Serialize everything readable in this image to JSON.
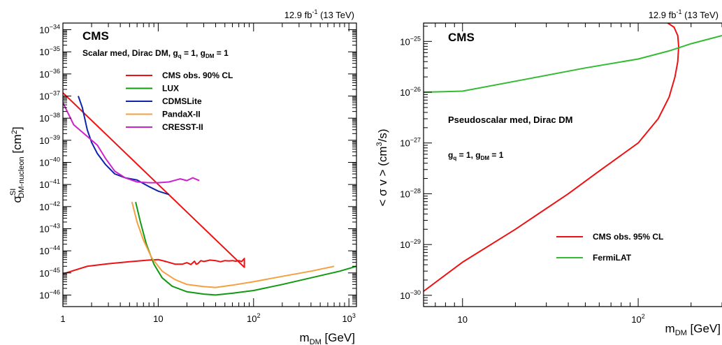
{
  "chart_data": [
    {
      "type": "line",
      "label": "CMS",
      "lumi": "12.9 fb",
      "lumi_exp": "-1",
      "energy": "(13 TeV)",
      "subtitle": "Scalar med, Dirac DM,  g",
      "subtitle_q": "q",
      "subtitle_mid": " = 1, g",
      "subtitle_dm": "DM",
      "subtitle_end": " = 1",
      "xlabel": "m",
      "xlabel_sub": "DM",
      "xlabel_unit": " [GeV]",
      "ylabel": "σ",
      "ylabel_sup": "SI",
      "ylabel_sub": "DM-nucleon",
      "ylabel_unit": " [cm",
      "ylabel_unit_sup": "2",
      "ylabel_unit_end": "]",
      "xscale": "log",
      "yscale": "log",
      "xlim": [
        1,
        1200
      ],
      "ylim": [
        3e-47,
        2e-34
      ],
      "legend_position": "top-center",
      "x_ticks": [
        {
          "value": 1,
          "base": "1",
          "exp": ""
        },
        {
          "value": 10,
          "base": "10",
          "exp": ""
        },
        {
          "value": 100,
          "base": "10",
          "exp": "2"
        },
        {
          "value": 1000,
          "base": "10",
          "exp": "3"
        }
      ],
      "y_ticks": [
        {
          "value": 1e-34,
          "base": "10",
          "exp": "−34"
        },
        {
          "value": 1e-35,
          "base": "10",
          "exp": "−35"
        },
        {
          "value": 1e-36,
          "base": "10",
          "exp": "−36"
        },
        {
          "value": 1e-37,
          "base": "10",
          "exp": "−37"
        },
        {
          "value": 1e-38,
          "base": "10",
          "exp": "−38"
        },
        {
          "value": 1e-39,
          "base": "10",
          "exp": "−39"
        },
        {
          "value": 1e-40,
          "base": "10",
          "exp": "−40"
        },
        {
          "value": 1e-41,
          "base": "10",
          "exp": "−41"
        },
        {
          "value": 1e-42,
          "base": "10",
          "exp": "−42"
        },
        {
          "value": 1e-43,
          "base": "10",
          "exp": "−43"
        },
        {
          "value": 1e-44,
          "base": "10",
          "exp": "−44"
        },
        {
          "value": 1e-45,
          "base": "10",
          "exp": "−45"
        },
        {
          "value": 1e-46,
          "base": "10",
          "exp": "−46"
        }
      ],
      "series": [
        {
          "name": "CMS obs. 90% CL",
          "color": "#ee1111",
          "x": [
            1,
            1.8,
            3,
            5,
            8,
            10,
            12,
            15,
            18,
            20,
            22,
            24,
            25,
            26,
            28,
            30,
            32,
            35,
            40,
            45,
            50,
            55,
            60,
            65,
            70,
            75,
            80,
            80,
            1
          ],
          "y": [
            9e-46,
            2e-45,
            2.6e-45,
            3.2e-45,
            3.8e-45,
            4e-45,
            3.3e-45,
            2.5e-45,
            2.5e-45,
            2.9e-45,
            2.4e-45,
            3.4e-45,
            2.5e-45,
            2.6e-45,
            3.6e-45,
            3.3e-45,
            3.5e-45,
            3.8e-45,
            3.6e-45,
            3.2e-45,
            3.6e-45,
            3.5e-45,
            3.6e-45,
            3.4e-45,
            3.6e-45,
            3.3e-45,
            4.5e-45,
            1.8e-45,
            1.4e-37
          ]
        },
        {
          "name": "LUX",
          "color": "#119911",
          "x": [
            5.8,
            6.5,
            7.5,
            9,
            11,
            14,
            20,
            30,
            40,
            60,
            100,
            200,
            400,
            800,
            1200
          ],
          "y": [
            1.6e-42,
            2e-43,
            2e-44,
            2.5e-45,
            6e-46,
            2.5e-46,
            1.4e-46,
            1.1e-46,
            1e-46,
            1.2e-46,
            1.6e-46,
            3e-46,
            6e-46,
            1.2e-45,
            2e-45
          ]
        },
        {
          "name": "CDMSLite",
          "color": "#1122aa",
          "x": [
            1.45,
            1.6,
            1.8,
            2,
            2.3,
            2.8,
            3.5,
            4.5,
            6,
            8,
            10,
            13
          ],
          "y": [
            1e-37,
            3e-38,
            3e-39,
            8e-40,
            2.5e-40,
            8e-41,
            3e-41,
            2e-41,
            1.6e-41,
            8e-42,
            5e-42,
            3.5e-42
          ]
        },
        {
          "name": "PandaX-II",
          "color": "#f5a040",
          "x": [
            5.3,
            6,
            7,
            8.5,
            11,
            15,
            20,
            30,
            40,
            60,
            100,
            200,
            400,
            700
          ],
          "y": [
            1.6e-42,
            2e-43,
            3e-44,
            5e-45,
            1.2e-45,
            5e-46,
            3e-46,
            2.4e-46,
            2.2e-46,
            2.8e-46,
            4e-46,
            7e-46,
            1.2e-45,
            2e-45
          ]
        },
        {
          "name": "CRESST-II",
          "color": "#cc22cc",
          "x": [
            1,
            1.3,
            1.8,
            2.3,
            2.8,
            3.5,
            4.5,
            6,
            8,
            10,
            13,
            17,
            20,
            23,
            27
          ],
          "y": [
            5e-38,
            5e-39,
            1.5e-39,
            6e-40,
            1.5e-40,
            4e-41,
            2e-41,
            1.3e-41,
            1.2e-41,
            1.2e-41,
            1.3e-41,
            1.8e-41,
            1.5e-41,
            2e-41,
            1.5e-41
          ]
        }
      ]
    },
    {
      "type": "line",
      "label": "CMS",
      "lumi": "12.9 fb",
      "lumi_exp": "-1",
      "energy": "(13 TeV)",
      "annotation1": "Pseudoscalar med, Dirac DM",
      "annotation2_a": "g",
      "annotation2_q": "q",
      "annotation2_b": " = 1, g",
      "annotation2_dm": "DM",
      "annotation2_c": " = 1",
      "xlabel": "m",
      "xlabel_sub": "DM",
      "xlabel_unit": " [GeV]",
      "ylabel": "< σ v > (cm",
      "ylabel_sup": "3",
      "ylabel_end": "/s)",
      "xscale": "log",
      "yscale": "log",
      "xlim": [
        6,
        300
      ],
      "ylim": [
        6e-31,
        2.3e-25
      ],
      "legend_position": "bottom-right",
      "x_ticks": [
        {
          "value": 10,
          "base": "10",
          "exp": ""
        },
        {
          "value": 100,
          "base": "10",
          "exp": "2"
        }
      ],
      "y_ticks": [
        {
          "value": 1e-25,
          "base": "10",
          "exp": "−25"
        },
        {
          "value": 1e-26,
          "base": "10",
          "exp": "−26"
        },
        {
          "value": 1e-27,
          "base": "10",
          "exp": "−27"
        },
        {
          "value": 1e-28,
          "base": "10",
          "exp": "−28"
        },
        {
          "value": 1e-29,
          "base": "10",
          "exp": "−29"
        },
        {
          "value": 1e-30,
          "base": "10",
          "exp": "−30"
        }
      ],
      "series": [
        {
          "name": "CMS obs. 95% CL",
          "color": "#ee1111",
          "x": [
            6,
            10,
            20,
            40,
            60,
            100,
            130,
            150,
            162,
            168,
            170,
            168,
            160,
            145
          ],
          "y": [
            1.2e-30,
            4.5e-30,
            2e-29,
            1e-28,
            2.8e-28,
            1e-27,
            3e-27,
            8e-27,
            2e-26,
            4e-26,
            8e-26,
            1.3e-25,
            1.9e-25,
            2.4e-25
          ]
        },
        {
          "name": "FermiLAT",
          "color": "#33bb33",
          "x": [
            6,
            10,
            25,
            50,
            100,
            150,
            200,
            300
          ],
          "y": [
            1e-26,
            1.05e-26,
            1.9e-26,
            3e-26,
            4.5e-26,
            6.5e-26,
            9e-26,
            1.3e-25
          ]
        }
      ]
    }
  ]
}
